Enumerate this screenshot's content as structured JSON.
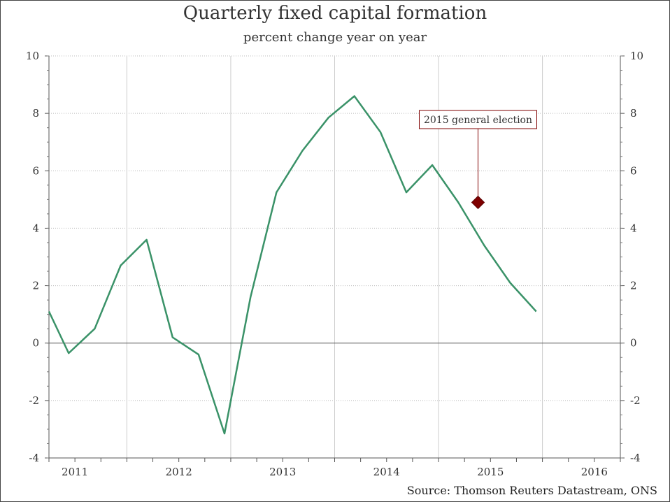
{
  "chart_data": {
    "type": "line",
    "title": "Quarterly fixed capital formation",
    "subtitle": "percent change year on year",
    "source": "Source: Thomson Reuters Datastream, ONS",
    "ylim": [
      -4,
      10
    ],
    "yticks": [
      -4,
      -2,
      0,
      2,
      4,
      6,
      8,
      10
    ],
    "xlim": [
      2010.75,
      2016.25
    ],
    "xtick_labels": [
      {
        "label": "2011",
        "x": 2011.0
      },
      {
        "label": "2012",
        "x": 2012.0
      },
      {
        "label": "2013",
        "x": 2013.0
      },
      {
        "label": "2014",
        "x": 2014.0
      },
      {
        "label": "2015",
        "x": 2015.0
      },
      {
        "label": "2016",
        "x": 2016.0
      }
    ],
    "grid": true,
    "series": [
      {
        "color": "#3a9268",
        "x": [
          2010.75,
          2010.94,
          2011.19,
          2011.44,
          2011.69,
          2011.94,
          2012.19,
          2012.44,
          2012.69,
          2012.94,
          2013.19,
          2013.44,
          2013.69,
          2013.94,
          2014.19,
          2014.44,
          2014.69,
          2014.94,
          2015.19,
          2015.44,
          2015.69
        ],
        "y": [
          1.1,
          -0.35,
          0.5,
          2.7,
          3.6,
          0.2,
          -0.4,
          -3.15,
          1.6,
          5.25,
          6.7,
          7.85,
          8.6,
          7.35,
          5.25,
          6.2,
          4.9,
          3.4,
          2.1,
          1.1,
          null
        ]
      }
    ],
    "annotation": {
      "text": "2015 general election",
      "x": 2014.88,
      "y": 4.9,
      "marker_color": "#7f0000"
    }
  }
}
